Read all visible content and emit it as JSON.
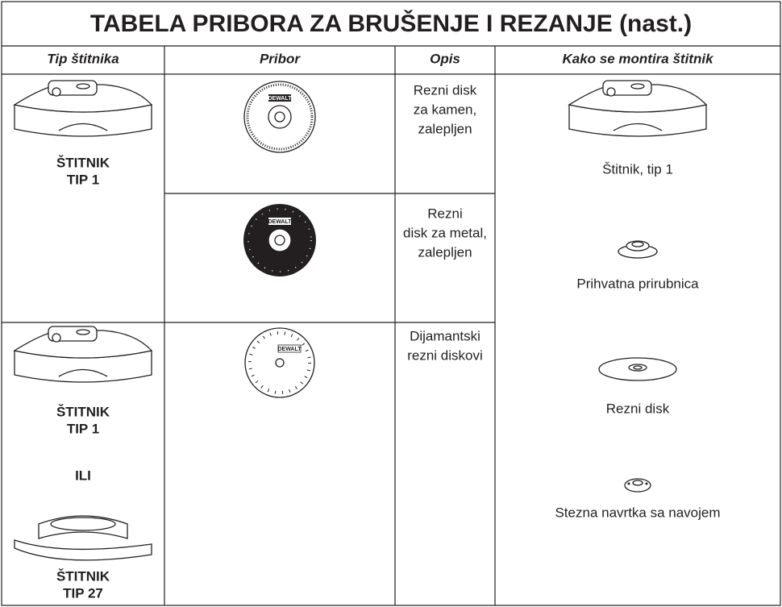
{
  "title": "TABELA PRIBORA ZA BRUŠENJE I REZANJE (nast.)",
  "headers": [
    "Tip štitnika",
    "Pribor",
    "Opis",
    "Kako se montira štitnik"
  ],
  "guards": [
    {
      "labels": [
        "ŠTITNIK",
        "TIP 1"
      ]
    },
    {
      "labels": [
        "ŠTITNIK",
        "TIP 1",
        "ILI",
        "ŠTITNIK",
        "TIP 27"
      ]
    }
  ],
  "brand": "DEWALT",
  "accessories": [
    {
      "description": [
        "Rezni disk",
        "za kamen,",
        "zalepljen"
      ]
    },
    {
      "description": [
        "Rezni",
        "disk za metal,",
        "zalepljen"
      ]
    },
    {
      "description": [
        "Dijamantski",
        "rezni diskovi"
      ]
    }
  ],
  "mounting": [
    "Štitnik, tip 1",
    "Prihvatna prirubnica",
    "Rezni disk",
    "Stezna navrtka sa navojem"
  ]
}
